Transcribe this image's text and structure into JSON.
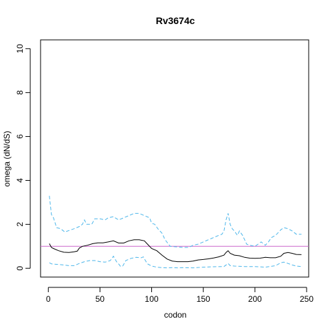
{
  "chart_data": {
    "type": "line",
    "title": "Rv3674c",
    "xlabel": "codon",
    "ylabel": "omega (dN/dS)",
    "xlim": [
      -7.5,
      252
    ],
    "ylim": [
      -0.4,
      10.4
    ],
    "xticks": [
      0,
      50,
      100,
      150,
      200,
      250
    ],
    "yticks": [
      0,
      2,
      4,
      6,
      8,
      10
    ],
    "reference_line": {
      "y": 1,
      "color": "#cc66cc"
    },
    "grid": false,
    "series": [
      {
        "role": "estimate",
        "color": "#000000",
        "style": "solid",
        "points": [
          [
            1,
            1.12
          ],
          [
            3,
            0.95
          ],
          [
            5,
            0.9
          ],
          [
            10,
            0.8
          ],
          [
            15,
            0.73
          ],
          [
            20,
            0.72
          ],
          [
            25,
            0.75
          ],
          [
            28,
            0.78
          ],
          [
            30,
            0.92
          ],
          [
            33,
            1.0
          ],
          [
            38,
            1.05
          ],
          [
            43,
            1.12
          ],
          [
            48,
            1.16
          ],
          [
            53,
            1.16
          ],
          [
            58,
            1.2
          ],
          [
            63,
            1.25
          ],
          [
            68,
            1.15
          ],
          [
            73,
            1.15
          ],
          [
            78,
            1.25
          ],
          [
            83,
            1.3
          ],
          [
            88,
            1.3
          ],
          [
            93,
            1.25
          ],
          [
            96,
            1.1
          ],
          [
            100,
            0.9
          ],
          [
            105,
            0.8
          ],
          [
            110,
            0.6
          ],
          [
            115,
            0.42
          ],
          [
            120,
            0.33
          ],
          [
            125,
            0.3
          ],
          [
            130,
            0.3
          ],
          [
            135,
            0.3
          ],
          [
            140,
            0.33
          ],
          [
            145,
            0.38
          ],
          [
            150,
            0.4
          ],
          [
            155,
            0.43
          ],
          [
            160,
            0.47
          ],
          [
            165,
            0.52
          ],
          [
            170,
            0.6
          ],
          [
            172,
            0.72
          ],
          [
            174,
            0.8
          ],
          [
            176,
            0.68
          ],
          [
            180,
            0.6
          ],
          [
            185,
            0.57
          ],
          [
            190,
            0.5
          ],
          [
            195,
            0.46
          ],
          [
            200,
            0.45
          ],
          [
            205,
            0.46
          ],
          [
            210,
            0.5
          ],
          [
            215,
            0.48
          ],
          [
            220,
            0.48
          ],
          [
            225,
            0.55
          ],
          [
            228,
            0.68
          ],
          [
            232,
            0.72
          ],
          [
            236,
            0.68
          ],
          [
            240,
            0.63
          ],
          [
            245,
            0.62
          ]
        ]
      },
      {
        "role": "upper",
        "color": "#4cb6ea",
        "style": "dashed",
        "points": [
          [
            1,
            3.3
          ],
          [
            3,
            2.45
          ],
          [
            5,
            2.3
          ],
          [
            8,
            1.85
          ],
          [
            12,
            1.8
          ],
          [
            16,
            1.65
          ],
          [
            20,
            1.72
          ],
          [
            25,
            1.8
          ],
          [
            30,
            1.9
          ],
          [
            33,
            2.0
          ],
          [
            35,
            2.2
          ],
          [
            37,
            2.0
          ],
          [
            42,
            2.0
          ],
          [
            45,
            2.25
          ],
          [
            50,
            2.25
          ],
          [
            55,
            2.2
          ],
          [
            58,
            2.3
          ],
          [
            63,
            2.35
          ],
          [
            68,
            2.2
          ],
          [
            73,
            2.3
          ],
          [
            78,
            2.4
          ],
          [
            83,
            2.5
          ],
          [
            88,
            2.5
          ],
          [
            93,
            2.4
          ],
          [
            98,
            2.3
          ],
          [
            100,
            2.05
          ],
          [
            103,
            2.0
          ],
          [
            106,
            1.8
          ],
          [
            110,
            1.6
          ],
          [
            113,
            1.3
          ],
          [
            118,
            1.0
          ],
          [
            125,
            0.97
          ],
          [
            130,
            0.95
          ],
          [
            136,
            0.95
          ],
          [
            140,
            1.05
          ],
          [
            145,
            1.1
          ],
          [
            150,
            1.2
          ],
          [
            155,
            1.3
          ],
          [
            160,
            1.4
          ],
          [
            165,
            1.5
          ],
          [
            168,
            1.55
          ],
          [
            170,
            1.7
          ],
          [
            172,
            2.2
          ],
          [
            174,
            2.5
          ],
          [
            176,
            2.0
          ],
          [
            178,
            1.8
          ],
          [
            180,
            1.7
          ],
          [
            183,
            1.5
          ],
          [
            185,
            1.7
          ],
          [
            188,
            1.5
          ],
          [
            190,
            1.3
          ],
          [
            192,
            1.1
          ],
          [
            195,
            1.05
          ],
          [
            200,
            1.0
          ],
          [
            203,
            1.1
          ],
          [
            206,
            1.2
          ],
          [
            210,
            1.05
          ],
          [
            213,
            1.2
          ],
          [
            216,
            1.4
          ],
          [
            220,
            1.5
          ],
          [
            225,
            1.75
          ],
          [
            228,
            1.85
          ],
          [
            232,
            1.8
          ],
          [
            236,
            1.7
          ],
          [
            240,
            1.55
          ],
          [
            245,
            1.55
          ]
        ]
      },
      {
        "role": "lower",
        "color": "#4cb6ea",
        "style": "dashed",
        "points": [
          [
            1,
            0.25
          ],
          [
            3,
            0.2
          ],
          [
            8,
            0.18
          ],
          [
            15,
            0.15
          ],
          [
            20,
            0.12
          ],
          [
            25,
            0.12
          ],
          [
            30,
            0.22
          ],
          [
            35,
            0.3
          ],
          [
            40,
            0.35
          ],
          [
            45,
            0.35
          ],
          [
            50,
            0.3
          ],
          [
            55,
            0.28
          ],
          [
            60,
            0.35
          ],
          [
            63,
            0.55
          ],
          [
            66,
            0.3
          ],
          [
            68,
            0.2
          ],
          [
            70,
            0.08
          ],
          [
            72,
            0.1
          ],
          [
            75,
            0.35
          ],
          [
            80,
            0.45
          ],
          [
            85,
            0.5
          ],
          [
            90,
            0.48
          ],
          [
            92,
            0.52
          ],
          [
            94,
            0.35
          ],
          [
            96,
            0.2
          ],
          [
            100,
            0.1
          ],
          [
            105,
            0.05
          ],
          [
            110,
            0.03
          ],
          [
            115,
            0.02
          ],
          [
            120,
            0.03
          ],
          [
            125,
            0.02
          ],
          [
            130,
            0.03
          ],
          [
            140,
            0.02
          ],
          [
            150,
            0.05
          ],
          [
            160,
            0.07
          ],
          [
            170,
            0.08
          ],
          [
            174,
            0.22
          ],
          [
            176,
            0.12
          ],
          [
            180,
            0.1
          ],
          [
            190,
            0.08
          ],
          [
            200,
            0.08
          ],
          [
            210,
            0.05
          ],
          [
            220,
            0.12
          ],
          [
            225,
            0.25
          ],
          [
            228,
            0.28
          ],
          [
            232,
            0.22
          ],
          [
            236,
            0.15
          ],
          [
            240,
            0.1
          ],
          [
            245,
            0.08
          ]
        ]
      }
    ]
  }
}
